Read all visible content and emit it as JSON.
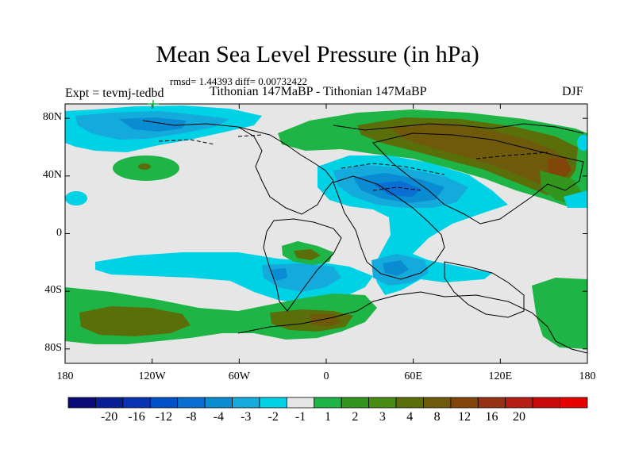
{
  "title": "Mean Sea Level Pressure (in hPa)",
  "stats": "rmsd= 1.44393 diff= 0.00732422",
  "experiment": "Expt = tevmj-tedbd",
  "subtitle": "Tithonian 147MaBP - Tithonian 147MaBP",
  "season": "DJF",
  "map": {
    "lon_range": [
      -180,
      180
    ],
    "lat_range": [
      -90,
      90
    ],
    "y_ticks": [
      {
        "lat": 80,
        "label": "80N"
      },
      {
        "lat": 40,
        "label": "40N"
      },
      {
        "lat": 0,
        "label": "0"
      },
      {
        "lat": -40,
        "label": "40S"
      },
      {
        "lat": -80,
        "label": "80S"
      }
    ],
    "x_ticks": [
      {
        "lon": -180,
        "label": "180"
      },
      {
        "lon": -120,
        "label": "120W"
      },
      {
        "lon": -60,
        "label": "60W"
      },
      {
        "lon": 0,
        "label": "0"
      },
      {
        "lon": 60,
        "label": "60E"
      },
      {
        "lon": 120,
        "label": "120E"
      },
      {
        "lon": 180,
        "label": "180"
      }
    ],
    "background_color": "#e6e6e6"
  },
  "colorbar": {
    "colors": [
      "#0a0a78",
      "#0a1e96",
      "#0a32b4",
      "#0050c8",
      "#0a6ed2",
      "#0a8cd2",
      "#14aadc",
      "#00d2e6",
      "#e6e6e6",
      "#1eb446",
      "#32961e",
      "#468c14",
      "#5a6e0a",
      "#6e5a0a",
      "#82460a",
      "#963214",
      "#b41e14",
      "#c80a0a",
      "#e60000"
    ],
    "labels": [
      "-20",
      "-16",
      "-12",
      "-8",
      "-4",
      "-3",
      "-2",
      "-1",
      "1",
      "2",
      "3",
      "4",
      "8",
      "12",
      "16",
      "20"
    ]
  }
}
